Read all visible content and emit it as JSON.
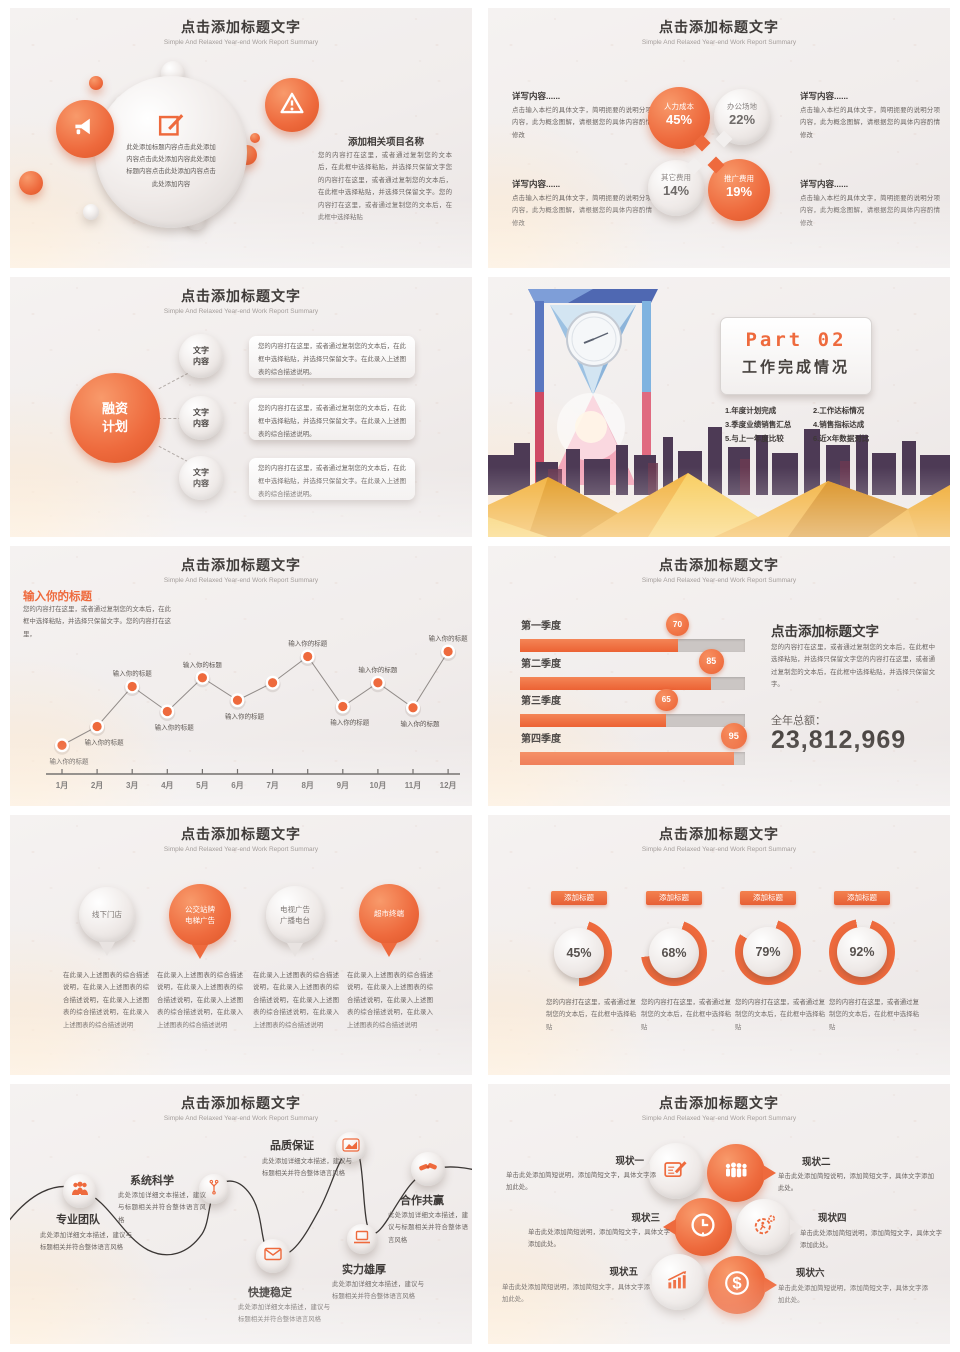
{
  "accent": "#ee6a3d",
  "common": {
    "title": "点击添加标题文字",
    "subtitle": "Simple And Relaxed Year-end Work Report Summary"
  },
  "s1": {
    "center_body": "此处添加标题内容点击此处添加内容点击此处添加内容此处添加标题内容点击此处添加内容点击此处添加内容",
    "right_heading": "添加相关项目名称",
    "right_body": "您的内容打在这里，或者通过复制您的文本后，在此框中选择粘贴，并选择只保留文字您的内容打在这里，或者通过复制您的文本后，在此框中选择粘贴，并选择只保留文字。您的内容打在这里，或者通过复制您的文本后，在此框中选择粘贴"
  },
  "s2": {
    "block_heading": "详写内容......",
    "block_body": "点击输入本栏的具体文字，简明扼要的说明分项内容，此为概念图解，请根据您的具体内容酌情修改",
    "bubbles": [
      {
        "label": "人力成本",
        "pct": "45%"
      },
      {
        "label": "办公场地",
        "pct": "22%"
      },
      {
        "label": "其它费用",
        "pct": "14%"
      },
      {
        "label": "推广费用",
        "pct": "19%"
      }
    ]
  },
  "s3": {
    "hub": "融资计划",
    "node": "文字内容",
    "card_body": "您的内容打在这里，或者通过复制您的文本后，在此框中选择粘贴，并选择只保留文字。在此录入上述图表的综合描述说明。"
  },
  "s4": {
    "part": "Part 02",
    "title": "工作完成情况",
    "items": [
      "1.年度计划完成",
      "2.工作达标情况",
      "3.季度业绩销售汇总",
      "4.销售指标达成",
      "5.与上一年度比较",
      "6.近X年数据对比"
    ]
  },
  "s5": {
    "heading": "输入你的标题",
    "body": "您的内容打在这里，或者通过复制您的文本后，在此框中选择粘贴，并选择只保留文字。您的内容打在这里，"
  },
  "s6": {
    "right_heading": "点击添加标题文字",
    "right_body": "您的内容打在这里，或者通过复制您的文本后，在此框中选择粘贴，并选择只保留文字您的内容打在这里，或者通过复制您的文本后，在此框中选择粘贴，并选择只保留文字。",
    "total_label": "全年总额：",
    "total_value": "23,812,969"
  },
  "s7": {
    "pins": [
      "线下门店",
      "公交站牌电梯广告",
      "电视广告广播电台",
      "超市终端"
    ],
    "body": "在此录入上述图表的综合描述说明，在此录入上述图表的综合描述说明，在此录入上述图表的综合描述说明，在此录入上述图表的综合描述说明"
  },
  "s8": {
    "ribbon": "添加标题",
    "body": "您的内容打在这里，或者通过复制您的文本后，在此框中选择粘贴"
  },
  "s9": {
    "body": "此处添加详细文本描述，建议与标题相关并符合整体语言风格",
    "nodes": [
      {
        "title": "专业团队",
        "icon": "team-icon"
      },
      {
        "title": "系统科学",
        "icon": "branch-icon"
      },
      {
        "title": "品质保证",
        "icon": "chart-icon"
      },
      {
        "title": "快捷稳定",
        "icon": "mail-icon"
      },
      {
        "title": "实力雄厚",
        "icon": "laptop-icon"
      },
      {
        "title": "合作共赢",
        "icon": "handshake-icon"
      }
    ]
  },
  "s10": {
    "body": "单击此处添加简短说明，添加简短文字，具体文字添加此处。",
    "items": [
      {
        "title": "现状一",
        "icon": "pen-document-icon"
      },
      {
        "title": "现状二",
        "icon": "team-icon"
      },
      {
        "title": "现状三",
        "icon": "clock-icon"
      },
      {
        "title": "现状四",
        "icon": "gear-runner-icon"
      },
      {
        "title": "现状五",
        "icon": "growth-chart-icon"
      },
      {
        "title": "现状六",
        "icon": "dollar-icon"
      }
    ]
  },
  "chart_data": [
    {
      "type": "line",
      "x": [
        "1月",
        "2月",
        "3月",
        "4月",
        "5月",
        "6月",
        "7月",
        "8月",
        "9月",
        "10月",
        "11月",
        "12月"
      ],
      "values": [
        23,
        38,
        70,
        50,
        77,
        59,
        73,
        94,
        54,
        73,
        53,
        98
      ],
      "point_label": "输入你的标题",
      "label_positions": [
        "below",
        "below",
        "above",
        "below",
        "above",
        "below",
        "none",
        "above",
        "below",
        "above",
        "below",
        "above"
      ],
      "ylim": [
        0,
        100
      ],
      "grid": false,
      "legend": "none"
    },
    {
      "type": "bar",
      "orientation": "horizontal",
      "categories": [
        "第一季度",
        "第二季度",
        "第三季度",
        "第四季度"
      ],
      "values": [
        70,
        85,
        65,
        95
      ],
      "xlim": [
        0,
        100
      ]
    },
    {
      "type": "pie",
      "subtype": "donut-gauge",
      "labels": [
        "添加标题",
        "添加标题",
        "添加标题",
        "添加标题"
      ],
      "values": [
        45,
        68,
        79,
        92
      ],
      "unit": "%"
    }
  ]
}
